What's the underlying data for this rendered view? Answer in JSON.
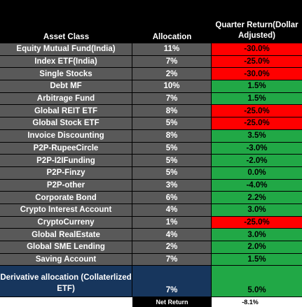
{
  "header": {
    "asset_class": "Asset Class",
    "allocation": "Allocation",
    "quarter_return": "Quarter Return(Dollar Adjusted)"
  },
  "rows": [
    {
      "name": "Equity Mutual Fund(India)",
      "allocation": "11%",
      "ret": "-30.0%",
      "status": "red"
    },
    {
      "name": "Index ETF(India)",
      "allocation": "7%",
      "ret": "-25.0%",
      "status": "red"
    },
    {
      "name": "Single Stocks",
      "allocation": "2%",
      "ret": "-30.0%",
      "status": "red"
    },
    {
      "name": "Debt MF",
      "allocation": "10%",
      "ret": "1.5%",
      "status": "green"
    },
    {
      "name": "Arbitrage Fund",
      "allocation": "7%",
      "ret": "1.5%",
      "status": "green"
    },
    {
      "name": "Global REIT ETF",
      "allocation": "8%",
      "ret": "-25.0%",
      "status": "red"
    },
    {
      "name": "Global  Stock ETF",
      "allocation": "5%",
      "ret": "-25.0%",
      "status": "red"
    },
    {
      "name": "Invoice Discounting",
      "allocation": "8%",
      "ret": "3.5%",
      "status": "green"
    },
    {
      "name": "P2P-RupeeCircle",
      "allocation": "5%",
      "ret": "-3.0%",
      "status": "green"
    },
    {
      "name": "P2P-I2IFunding",
      "allocation": "5%",
      "ret": "-2.0%",
      "status": "green"
    },
    {
      "name": "P2P-Finzy",
      "allocation": "5%",
      "ret": "0.0%",
      "status": "green"
    },
    {
      "name": "P2P-other",
      "allocation": "3%",
      "ret": "-4.0%",
      "status": "green"
    },
    {
      "name": "Corporate Bond",
      "allocation": "6%",
      "ret": "2.2%",
      "status": "green"
    },
    {
      "name": "Crypto Interest Account",
      "allocation": "4%",
      "ret": "3.0%",
      "status": "green"
    },
    {
      "name": "CryptoCurreny",
      "allocation": "1%",
      "ret": "-25.0%",
      "status": "red"
    },
    {
      "name": "Global RealEstate",
      "allocation": "4%",
      "ret": "3.0%",
      "status": "green"
    },
    {
      "name": "Global SME Lending",
      "allocation": "2%",
      "ret": "2.0%",
      "status": "green"
    },
    {
      "name": "Saving Account",
      "allocation": "7%",
      "ret": "1.5%",
      "status": "green"
    }
  ],
  "derivative": {
    "name": "Derivative allocation (Collaterlized ETF)",
    "allocation": "7%",
    "ret": "5.0%"
  },
  "net": {
    "label": "Net Return",
    "value": "-8.1%"
  },
  "colors": {
    "red": "#ff0000",
    "green": "#21a846",
    "row_bg": "#595959",
    "derivative_bg": "#17365d",
    "header_bg": "#000000"
  }
}
